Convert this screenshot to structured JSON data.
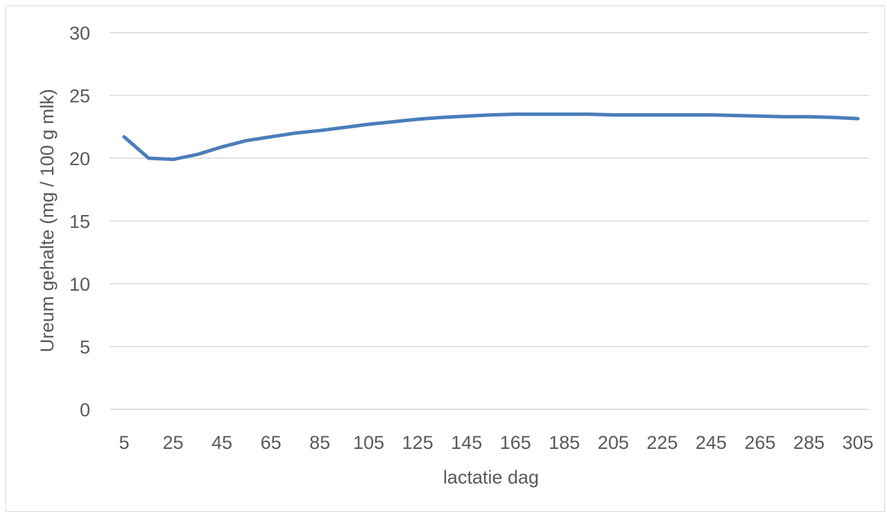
{
  "chart_data": {
    "type": "line",
    "title": "",
    "xlabel": "lactatie dag",
    "ylabel": "Ureum gehalte (mg / 100 g mlk)",
    "ylim": [
      0,
      30
    ],
    "yticks": [
      0,
      5,
      10,
      15,
      20,
      25,
      30
    ],
    "xticks": [
      5,
      25,
      45,
      65,
      85,
      105,
      125,
      145,
      165,
      185,
      205,
      225,
      245,
      265,
      285,
      305
    ],
    "x": [
      5,
      15,
      25,
      35,
      45,
      55,
      65,
      75,
      85,
      95,
      105,
      115,
      125,
      135,
      145,
      155,
      165,
      175,
      185,
      195,
      205,
      215,
      225,
      235,
      245,
      255,
      265,
      275,
      285,
      295,
      305
    ],
    "series": [
      {
        "color": "#4a7ebb",
        "values": [
          21.7,
          20.0,
          19.9,
          20.3,
          20.9,
          21.4,
          21.7,
          22.0,
          22.2,
          22.45,
          22.7,
          22.9,
          23.1,
          23.25,
          23.35,
          23.45,
          23.5,
          23.5,
          23.5,
          23.5,
          23.45,
          23.45,
          23.45,
          23.45,
          23.45,
          23.4,
          23.35,
          23.3,
          23.3,
          23.25,
          23.15
        ]
      }
    ],
    "grid": true,
    "legend": "none"
  }
}
